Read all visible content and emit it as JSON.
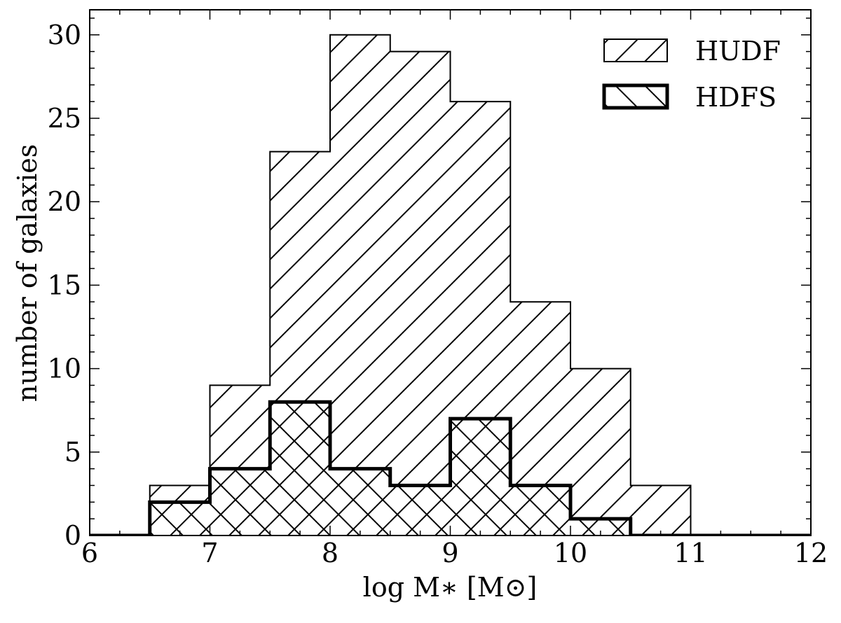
{
  "chart_data": {
    "type": "bar",
    "histogram": true,
    "xlabel": "log M∗ [M⊙]",
    "ylabel": "number of galaxies",
    "xlim": [
      6,
      12
    ],
    "ylim": [
      0,
      31.5
    ],
    "xticks": [
      "6",
      "7",
      "8",
      "9",
      "10",
      "11",
      "12"
    ],
    "yticks": [
      "0",
      "5",
      "10",
      "15",
      "20",
      "25",
      "30"
    ],
    "bin_edges": [
      6.0,
      6.5,
      7.0,
      7.5,
      8.0,
      8.5,
      9.0,
      9.5,
      10.0,
      10.5,
      11.0,
      11.5,
      12.0
    ],
    "series": [
      {
        "name": "HUDF",
        "values": [
          0,
          3,
          9,
          23,
          30,
          29,
          26,
          14,
          10,
          3,
          0,
          0
        ],
        "hatch": "forward-diagonal",
        "line_weight": "thin"
      },
      {
        "name": "HDFS",
        "values": [
          0,
          2,
          4,
          8,
          4,
          3,
          7,
          3,
          1,
          0,
          0,
          0
        ],
        "hatch": "back-diagonal",
        "line_weight": "thick"
      }
    ],
    "legend_position": "top-right",
    "grid": false
  }
}
